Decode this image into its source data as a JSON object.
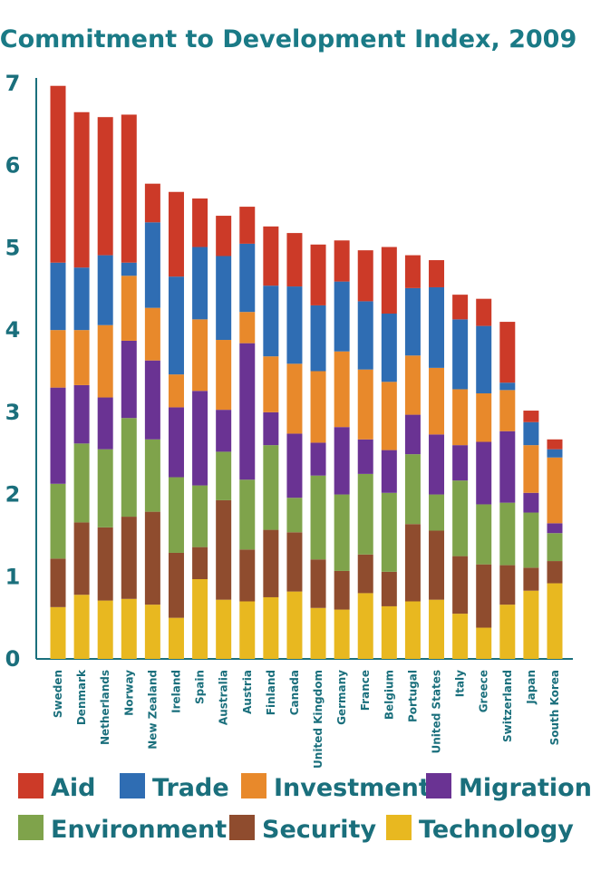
{
  "chart_data": {
    "type": "bar",
    "stacked": true,
    "title": "Commitment to Development Index, 2009",
    "xlabel": "",
    "ylabel": "",
    "ylim": [
      0,
      7
    ],
    "yticks": [
      "0",
      "1",
      "2",
      "3",
      "4",
      "5",
      "6",
      "7"
    ],
    "grid": false,
    "legend_position": "bottom",
    "categories": [
      "Sweden",
      "Denmark",
      "Netherlands",
      "Norway",
      "New Zealand",
      "Ireland",
      "Spain",
      "Australia",
      "Austria",
      "Finland",
      "Canada",
      "United Kingdom",
      "Germany",
      "France",
      "Belgium",
      "Portugal",
      "United States",
      "Italy",
      "Greece",
      "Switzerland",
      "Japan",
      "South Korea"
    ],
    "series": [
      {
        "name": "Technology",
        "color": "#e8b820",
        "values": [
          0.63,
          0.78,
          0.71,
          0.73,
          0.66,
          0.5,
          0.97,
          0.72,
          0.7,
          0.75,
          0.82,
          0.62,
          0.6,
          0.8,
          0.64,
          0.7,
          0.72,
          0.55,
          0.38,
          0.66,
          0.83,
          0.92
        ]
      },
      {
        "name": "Security",
        "color": "#8f4c2e",
        "values": [
          0.59,
          0.88,
          0.89,
          1.0,
          1.13,
          0.79,
          0.39,
          1.21,
          0.63,
          0.82,
          0.72,
          0.59,
          0.47,
          0.47,
          0.42,
          0.94,
          0.84,
          0.7,
          0.77,
          0.48,
          0.28,
          0.27
        ]
      },
      {
        "name": "Environment",
        "color": "#7fa34b",
        "values": [
          0.91,
          0.96,
          0.95,
          1.2,
          0.88,
          0.92,
          0.75,
          0.59,
          0.85,
          1.03,
          0.42,
          1.02,
          0.93,
          0.98,
          0.96,
          0.85,
          0.44,
          0.92,
          0.73,
          0.76,
          0.67,
          0.34
        ]
      },
      {
        "name": "Migration",
        "color": "#6a3393",
        "values": [
          1.17,
          0.71,
          0.63,
          0.94,
          0.96,
          0.85,
          1.15,
          0.51,
          1.66,
          0.4,
          0.78,
          0.4,
          0.82,
          0.42,
          0.52,
          0.48,
          0.73,
          0.43,
          0.76,
          0.87,
          0.24,
          0.12
        ]
      },
      {
        "name": "Investment",
        "color": "#e8892b",
        "values": [
          0.7,
          0.67,
          0.88,
          0.79,
          0.64,
          0.4,
          0.87,
          0.85,
          0.38,
          0.68,
          0.85,
          0.87,
          0.92,
          0.85,
          0.83,
          0.72,
          0.81,
          0.68,
          0.59,
          0.5,
          0.58,
          0.8
        ]
      },
      {
        "name": "Trade",
        "color": "#2f6db3",
        "values": [
          0.82,
          0.76,
          0.85,
          0.16,
          1.04,
          1.19,
          0.88,
          1.02,
          0.83,
          0.86,
          0.94,
          0.8,
          0.85,
          0.83,
          0.83,
          0.82,
          0.98,
          0.85,
          0.82,
          0.09,
          0.28,
          0.1
        ]
      },
      {
        "name": "Aid",
        "color": "#cc3a28",
        "values": [
          2.15,
          1.89,
          1.68,
          1.8,
          0.47,
          1.03,
          0.59,
          0.49,
          0.45,
          0.72,
          0.65,
          0.74,
          0.5,
          0.62,
          0.81,
          0.4,
          0.33,
          0.3,
          0.33,
          0.74,
          0.14,
          0.12
        ]
      }
    ]
  },
  "legend": {
    "rows": [
      [
        "Aid",
        "Trade",
        "Investment",
        "Migration"
      ],
      [
        "Environment",
        "Security",
        "Technology"
      ]
    ]
  }
}
